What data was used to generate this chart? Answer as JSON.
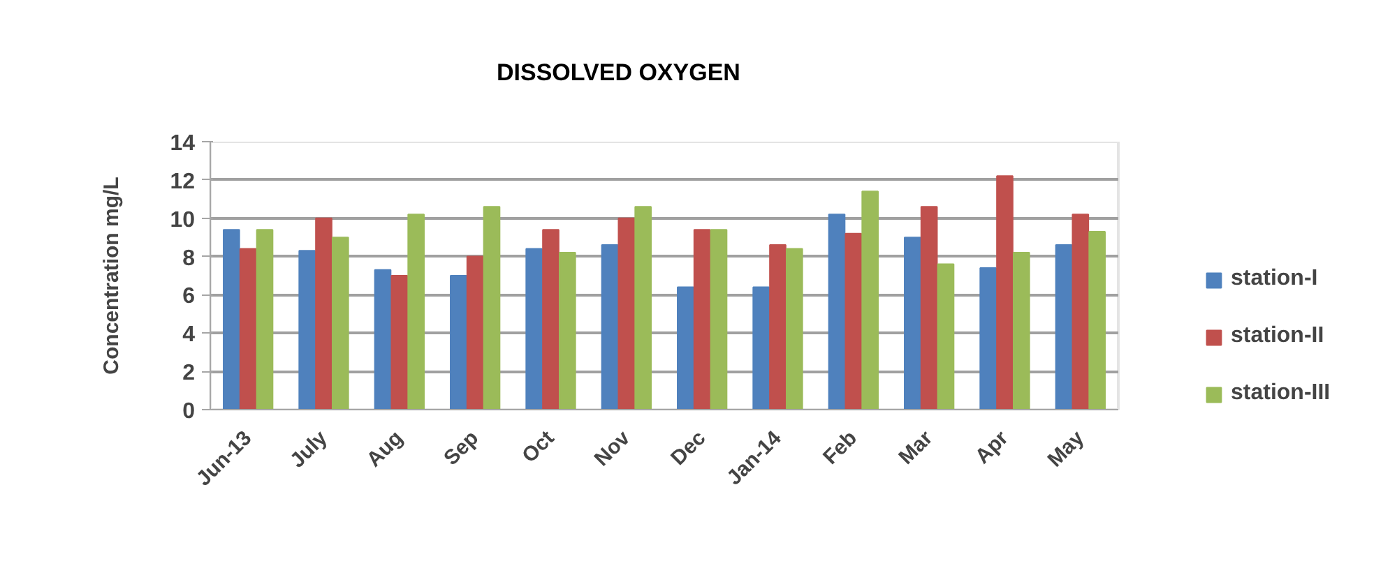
{
  "chart_data": {
    "type": "bar",
    "title": "DISSOLVED OXYGEN",
    "ylabel": "Concentration mg/L",
    "categories": [
      "Jun-13",
      "July",
      "Aug",
      "Sep",
      "Oct",
      "Nov",
      "Dec",
      "Jan-14",
      "Feb",
      "Mar",
      "Apr",
      "May"
    ],
    "series": [
      {
        "name": "station-I",
        "color": "#4f81bd",
        "values": [
          9.4,
          8.3,
          7.3,
          7.0,
          8.4,
          8.6,
          6.4,
          6.4,
          10.2,
          9.0,
          7.4,
          8.6
        ]
      },
      {
        "name": "station-II",
        "color": "#c0504d",
        "values": [
          8.4,
          10.0,
          7.0,
          8.0,
          9.4,
          10.0,
          9.4,
          8.6,
          9.2,
          10.6,
          12.2,
          10.2
        ]
      },
      {
        "name": "station-III",
        "color": "#9bbb59",
        "values": [
          9.4,
          9.0,
          10.2,
          10.6,
          8.2,
          10.6,
          9.4,
          8.4,
          11.4,
          7.6,
          8.2,
          9.3
        ]
      }
    ],
    "ylim": [
      0,
      14
    ],
    "yticks": [
      0,
      2,
      4,
      6,
      8,
      10,
      12,
      14
    ],
    "grid": "y",
    "legend": "right"
  }
}
